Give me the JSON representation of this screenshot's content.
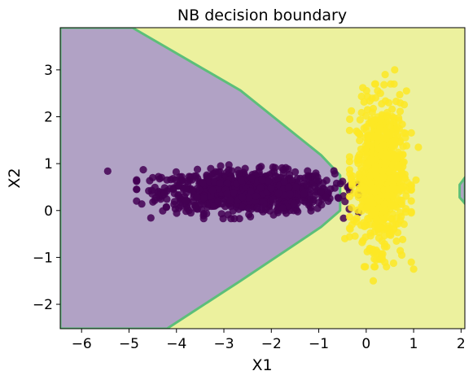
{
  "chart_data": {
    "type": "scatter",
    "subtype": "decision_boundary",
    "title": "NB decision boundary",
    "xlabel": "X1",
    "ylabel": "X2",
    "xlim": [
      -6.45,
      2.08
    ],
    "ylim": [
      -2.52,
      3.9
    ],
    "x_ticks": [
      -6,
      -5,
      -4,
      -3,
      -2,
      -1,
      0,
      1,
      2
    ],
    "y_ticks": [
      -2,
      -1,
      0,
      1,
      2,
      3
    ],
    "x_tick_labels": [
      "−6",
      "−5",
      "−4",
      "−3",
      "−2",
      "−1",
      "0",
      "1",
      "2"
    ],
    "y_tick_labels": [
      "−2",
      "−1",
      "0",
      "1",
      "2",
      "3"
    ],
    "grid": false,
    "legend": "none",
    "colors": {
      "region_class0": "#b1a2c5",
      "region_class1": "#ecf19e",
      "boundary_band": "#5cbf79",
      "point_class0": "#440154",
      "point_class1": "#fde725"
    },
    "boundary": {
      "description": "class-0 region (purple) is a wedge opening left; class-1 region (yellow) everywhere else, plus a small purple sliver at the right edge",
      "upper_edge": [
        [
          -4.93,
          3.9
        ],
        [
          -2.65,
          2.56
        ],
        [
          -0.95,
          1.18
        ],
        [
          -0.55,
          0.75
        ]
      ],
      "lower_edge": [
        [
          -0.55,
          0.75
        ],
        [
          -0.55,
          0.0
        ],
        [
          -0.95,
          -0.35
        ],
        [
          -2.65,
          -1.5
        ],
        [
          -4.2,
          -2.52
        ]
      ],
      "right_sliver": [
        [
          2.08,
          0.7
        ],
        [
          1.97,
          0.55
        ],
        [
          1.97,
          0.28
        ],
        [
          2.08,
          0.15
        ]
      ]
    },
    "series": [
      {
        "class": 0,
        "cluster": {
          "center": [
            -2.5,
            0.4
          ],
          "sd": [
            0.9,
            0.22
          ],
          "n": 900
        },
        "outliers": [
          [
            -5.45,
            0.84
          ],
          [
            -4.7,
            0.87
          ],
          [
            -4.5,
            0.7
          ],
          [
            -4.25,
            0.35
          ],
          [
            -4.2,
            0.65
          ],
          [
            -3.95,
            0.05
          ],
          [
            -3.8,
            0.2
          ],
          [
            -4.05,
            0.13
          ],
          [
            -0.8,
            0.38
          ],
          [
            -0.75,
            0.46
          ],
          [
            -0.85,
            0.28
          ]
        ]
      },
      {
        "class": 1,
        "cluster": {
          "center": [
            0.3,
            0.75
          ],
          "sd": [
            0.25,
            0.75
          ],
          "n": 800
        },
        "outliers": [
          [
            0.6,
            3.0
          ],
          [
            0.4,
            2.9
          ],
          [
            0.85,
            2.55
          ],
          [
            0.3,
            2.5
          ],
          [
            1.1,
            1.35
          ],
          [
            1.05,
            0.65
          ],
          [
            0.95,
            -1.1
          ],
          [
            0.75,
            -0.95
          ],
          [
            0.15,
            -1.5
          ],
          [
            1.0,
            -1.25
          ],
          [
            -0.45,
            -0.6
          ],
          [
            -0.3,
            -0.3
          ],
          [
            0.2,
            -0.9
          ]
        ]
      }
    ]
  }
}
